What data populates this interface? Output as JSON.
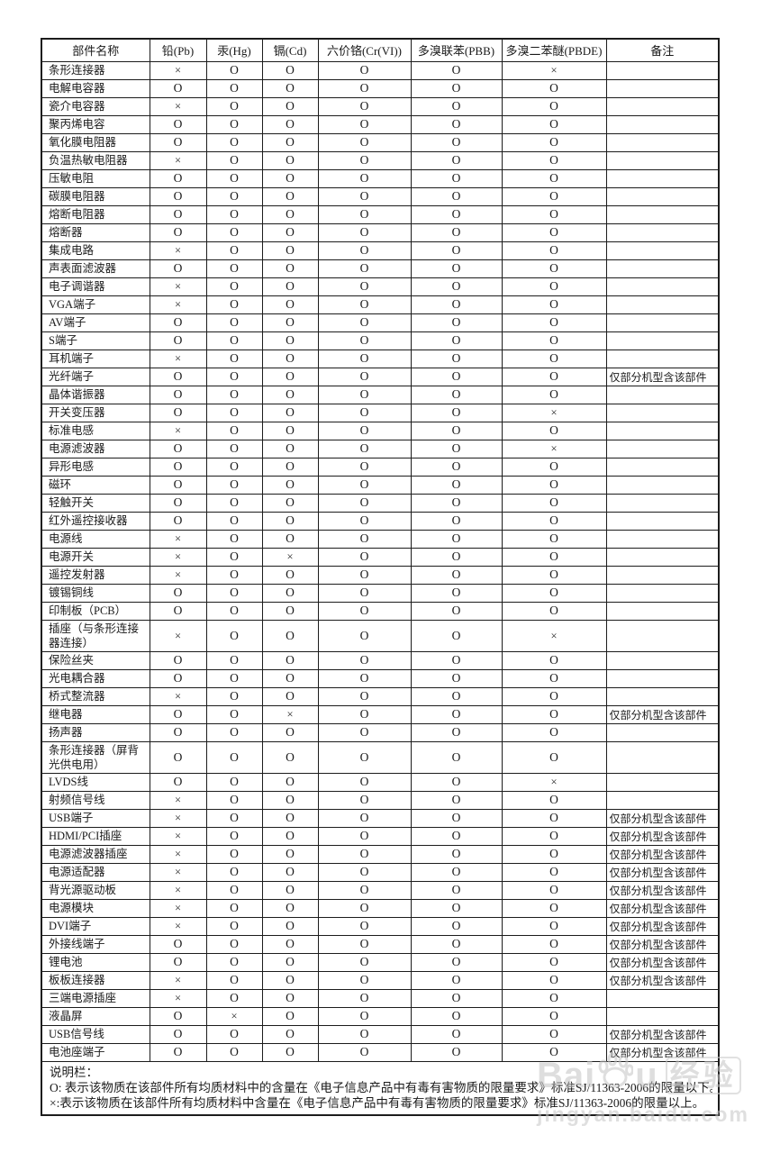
{
  "table": {
    "headers": [
      "部件名称",
      "铅(Pb)",
      "汞(Hg)",
      "镉(Cd)",
      "六价铬(Cr(VI))",
      "多溴联苯(PBB)",
      "多溴二苯醚(PBDE)",
      "备注"
    ],
    "remark_common": "仅部分机型含该部件",
    "rows": [
      {
        "name": "条形连接器",
        "values": [
          "×",
          "O",
          "O",
          "O",
          "O",
          "×"
        ],
        "remark": ""
      },
      {
        "name": "电解电容器",
        "values": [
          "O",
          "O",
          "O",
          "O",
          "O",
          "O"
        ],
        "remark": ""
      },
      {
        "name": "瓷介电容器",
        "values": [
          "×",
          "O",
          "O",
          "O",
          "O",
          "O"
        ],
        "remark": ""
      },
      {
        "name": "聚丙烯电容",
        "values": [
          "O",
          "O",
          "O",
          "O",
          "O",
          "O"
        ],
        "remark": ""
      },
      {
        "name": "氧化膜电阻器",
        "values": [
          "O",
          "O",
          "O",
          "O",
          "O",
          "O"
        ],
        "remark": ""
      },
      {
        "name": "负温热敏电阻器",
        "values": [
          "×",
          "O",
          "O",
          "O",
          "O",
          "O"
        ],
        "remark": ""
      },
      {
        "name": "压敏电阻",
        "values": [
          "O",
          "O",
          "O",
          "O",
          "O",
          "O"
        ],
        "remark": ""
      },
      {
        "name": "碳膜电阻器",
        "values": [
          "O",
          "O",
          "O",
          "O",
          "O",
          "O"
        ],
        "remark": ""
      },
      {
        "name": "熔断电阻器",
        "values": [
          "O",
          "O",
          "O",
          "O",
          "O",
          "O"
        ],
        "remark": ""
      },
      {
        "name": "熔断器",
        "values": [
          "O",
          "O",
          "O",
          "O",
          "O",
          "O"
        ],
        "remark": ""
      },
      {
        "name": "集成电路",
        "values": [
          "×",
          "O",
          "O",
          "O",
          "O",
          "O"
        ],
        "remark": ""
      },
      {
        "name": "声表面滤波器",
        "values": [
          "O",
          "O",
          "O",
          "O",
          "O",
          "O"
        ],
        "remark": ""
      },
      {
        "name": "电子调谐器",
        "values": [
          "×",
          "O",
          "O",
          "O",
          "O",
          "O"
        ],
        "remark": ""
      },
      {
        "name": "VGA端子",
        "values": [
          "×",
          "O",
          "O",
          "O",
          "O",
          "O"
        ],
        "remark": ""
      },
      {
        "name": "AV端子",
        "values": [
          "O",
          "O",
          "O",
          "O",
          "O",
          "O"
        ],
        "remark": ""
      },
      {
        "name": "S端子",
        "values": [
          "O",
          "O",
          "O",
          "O",
          "O",
          "O"
        ],
        "remark": ""
      },
      {
        "name": "耳机端子",
        "values": [
          "×",
          "O",
          "O",
          "O",
          "O",
          "O"
        ],
        "remark": ""
      },
      {
        "name": "光纤端子",
        "values": [
          "O",
          "O",
          "O",
          "O",
          "O",
          "O"
        ],
        "remark": "仅部分机型含该部件"
      },
      {
        "name": "晶体谐振器",
        "values": [
          "O",
          "O",
          "O",
          "O",
          "O",
          "O"
        ],
        "remark": ""
      },
      {
        "name": "开关变压器",
        "values": [
          "O",
          "O",
          "O",
          "O",
          "O",
          "×"
        ],
        "remark": ""
      },
      {
        "name": "标准电感",
        "values": [
          "×",
          "O",
          "O",
          "O",
          "O",
          "O"
        ],
        "remark": ""
      },
      {
        "name": "电源滤波器",
        "values": [
          "O",
          "O",
          "O",
          "O",
          "O",
          "×"
        ],
        "remark": ""
      },
      {
        "name": "异形电感",
        "values": [
          "O",
          "O",
          "O",
          "O",
          "O",
          "O"
        ],
        "remark": ""
      },
      {
        "name": "磁环",
        "values": [
          "O",
          "O",
          "O",
          "O",
          "O",
          "O"
        ],
        "remark": ""
      },
      {
        "name": "轻触开关",
        "values": [
          "O",
          "O",
          "O",
          "O",
          "O",
          "O"
        ],
        "remark": ""
      },
      {
        "name": "红外遥控接收器",
        "values": [
          "O",
          "O",
          "O",
          "O",
          "O",
          "O"
        ],
        "remark": ""
      },
      {
        "name": "电源线",
        "values": [
          "×",
          "O",
          "O",
          "O",
          "O",
          "O"
        ],
        "remark": ""
      },
      {
        "name": "电源开关",
        "values": [
          "×",
          "O",
          "×",
          "O",
          "O",
          "O"
        ],
        "remark": ""
      },
      {
        "name": "遥控发射器",
        "values": [
          "×",
          "O",
          "O",
          "O",
          "O",
          "O"
        ],
        "remark": ""
      },
      {
        "name": "镀锡铜线",
        "values": [
          "O",
          "O",
          "O",
          "O",
          "O",
          "O"
        ],
        "remark": ""
      },
      {
        "name": "印制板（PCB）",
        "values": [
          "O",
          "O",
          "O",
          "O",
          "O",
          "O"
        ],
        "remark": ""
      },
      {
        "name": "插座（与条形连接器连接）",
        "values": [
          "×",
          "O",
          "O",
          "O",
          "O",
          "×"
        ],
        "remark": ""
      },
      {
        "name": "保险丝夹",
        "values": [
          "O",
          "O",
          "O",
          "O",
          "O",
          "O"
        ],
        "remark": ""
      },
      {
        "name": "光电耦合器",
        "values": [
          "O",
          "O",
          "O",
          "O",
          "O",
          "O"
        ],
        "remark": ""
      },
      {
        "name": "桥式整流器",
        "values": [
          "×",
          "O",
          "O",
          "O",
          "O",
          "O"
        ],
        "remark": ""
      },
      {
        "name": "继电器",
        "values": [
          "O",
          "O",
          "×",
          "O",
          "O",
          "O"
        ],
        "remark": "仅部分机型含该部件"
      },
      {
        "name": "扬声器",
        "values": [
          "O",
          "O",
          "O",
          "O",
          "O",
          "O"
        ],
        "remark": ""
      },
      {
        "name": "条形连接器（屏背光供电用）",
        "values": [
          "O",
          "O",
          "O",
          "O",
          "O",
          "O"
        ],
        "remark": ""
      },
      {
        "name": "LVDS线",
        "values": [
          "O",
          "O",
          "O",
          "O",
          "O",
          "×"
        ],
        "remark": ""
      },
      {
        "name": "射频信号线",
        "values": [
          "×",
          "O",
          "O",
          "O",
          "O",
          "O"
        ],
        "remark": ""
      },
      {
        "name": "USB端子",
        "values": [
          "×",
          "O",
          "O",
          "O",
          "O",
          "O"
        ],
        "remark": "仅部分机型含该部件"
      },
      {
        "name": "HDMI/PCI插座",
        "values": [
          "×",
          "O",
          "O",
          "O",
          "O",
          "O"
        ],
        "remark": "仅部分机型含该部件"
      },
      {
        "name": "电源滤波器插座",
        "values": [
          "×",
          "O",
          "O",
          "O",
          "O",
          "O"
        ],
        "remark": "仅部分机型含该部件"
      },
      {
        "name": "电源适配器",
        "values": [
          "×",
          "O",
          "O",
          "O",
          "O",
          "O"
        ],
        "remark": "仅部分机型含该部件"
      },
      {
        "name": "背光源驱动板",
        "values": [
          "×",
          "O",
          "O",
          "O",
          "O",
          "O"
        ],
        "remark": "仅部分机型含该部件"
      },
      {
        "name": "电源模块",
        "values": [
          "×",
          "O",
          "O",
          "O",
          "O",
          "O"
        ],
        "remark": "仅部分机型含该部件"
      },
      {
        "name": "DVI端子",
        "values": [
          "×",
          "O",
          "O",
          "O",
          "O",
          "O"
        ],
        "remark": "仅部分机型含该部件"
      },
      {
        "name": "外接线端子",
        "values": [
          "O",
          "O",
          "O",
          "O",
          "O",
          "O"
        ],
        "remark": "仅部分机型含该部件"
      },
      {
        "name": "锂电池",
        "values": [
          "O",
          "O",
          "O",
          "O",
          "O",
          "O"
        ],
        "remark": "仅部分机型含该部件"
      },
      {
        "name": "板板连接器",
        "values": [
          "×",
          "O",
          "O",
          "O",
          "O",
          "O"
        ],
        "remark": "仅部分机型含该部件"
      },
      {
        "name": "三端电源插座",
        "values": [
          "×",
          "O",
          "O",
          "O",
          "O",
          "O"
        ],
        "remark": ""
      },
      {
        "name": "液晶屏",
        "values": [
          "O",
          "×",
          "O",
          "O",
          "O",
          "O"
        ],
        "remark": ""
      },
      {
        "name": "USB信号线",
        "values": [
          "O",
          "O",
          "O",
          "O",
          "O",
          "O"
        ],
        "remark": "仅部分机型含该部件"
      },
      {
        "name": "电池座端子",
        "values": [
          "O",
          "O",
          "O",
          "O",
          "O",
          "O"
        ],
        "remark": "仅部分机型含该部件"
      }
    ],
    "notes": {
      "title": "说明栏：",
      "line_o": "O: 表示该物质在该部件所有均质材料中的含量在《电子信息产品中有毒有害物质的限量要求》标准SJ/11363-2006的限量以下。",
      "line_x": "×:表示该物质在该部件所有均质材料中含量在《电子信息产品中有毒有害物质的限量要求》标准SJ/11363-2006的限量以上。"
    }
  },
  "watermark": {
    "brand_left": "Bai",
    "brand_right": "u",
    "brand_cn": "经验",
    "url": "jingyan.baidu.com",
    "color": "#c4c4c4"
  },
  "colors": {
    "border": "#1c1c1c",
    "text": "#1a1a1a",
    "background": "#ffffff"
  }
}
